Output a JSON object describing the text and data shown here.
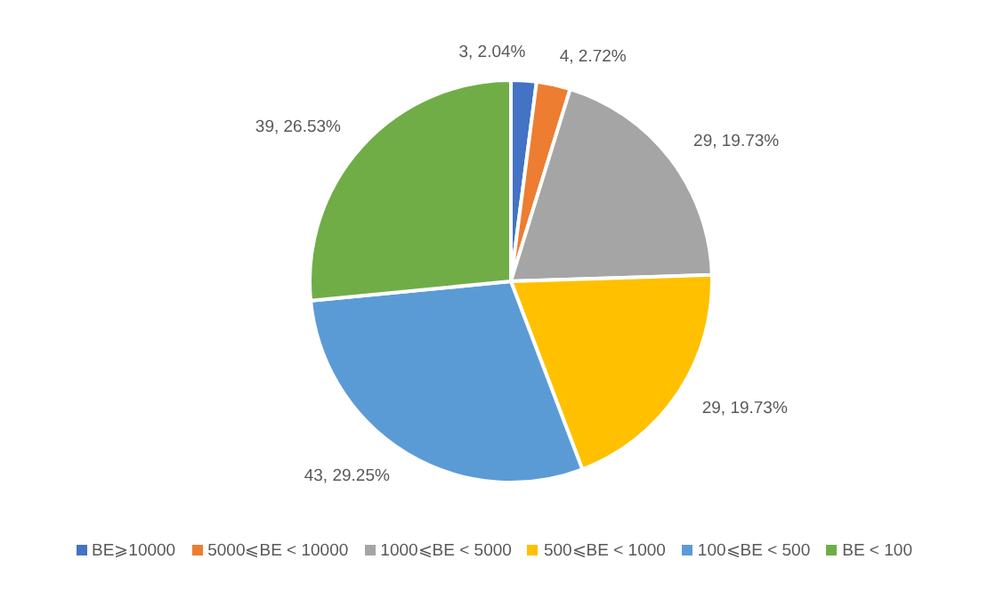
{
  "chart_data": {
    "type": "pie",
    "categories": [
      "BE⩾10000",
      "5000⩽BE < 10000",
      "1000⩽BE < 5000",
      "500⩽BE < 1000",
      "100⩽BE < 500",
      "BE < 100"
    ],
    "values": [
      3,
      4,
      29,
      29,
      43,
      39
    ],
    "value_labels": [
      "3, 2.04%",
      "4, 2.72%",
      "29, 19.73%",
      "29, 19.73%",
      "43, 29.25%",
      "39, 26.53%"
    ],
    "colors": [
      "#4472c4",
      "#ed7d31",
      "#a5a5a5",
      "#ffc000",
      "#5b9bd5",
      "#70ad47"
    ],
    "legend": "bottom"
  }
}
